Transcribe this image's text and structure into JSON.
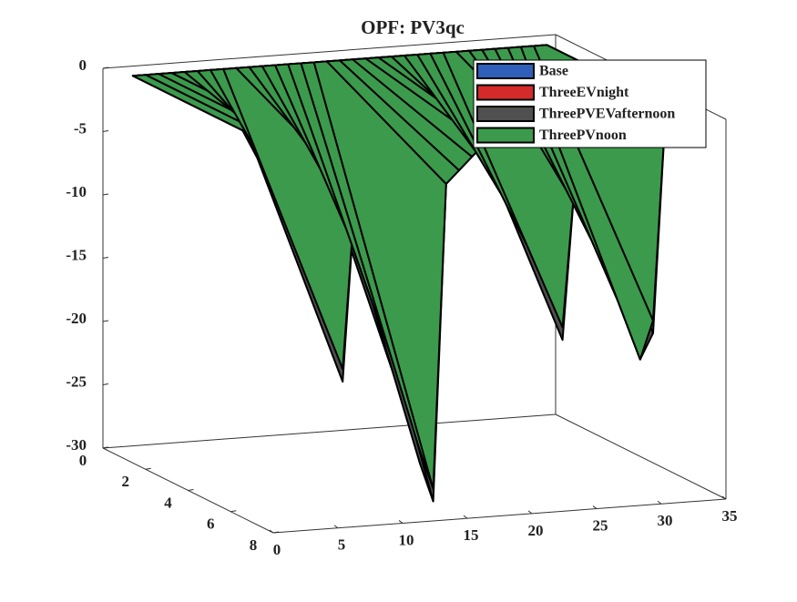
{
  "chart_data": {
    "type": "surface3d",
    "title": "OPF: PV3qc",
    "x": [
      1,
      2,
      3,
      4,
      5,
      6,
      7,
      8,
      9,
      10,
      11,
      12,
      13,
      14,
      15,
      16,
      17,
      18,
      19,
      20,
      21,
      22,
      23,
      24,
      25,
      26,
      27,
      28,
      29,
      30,
      31,
      32,
      33
    ],
    "series": [
      {
        "name": "Base",
        "color": "#2f5fb8",
        "values": [
          0,
          0,
          0,
          0,
          0,
          0,
          0,
          0,
          0,
          0,
          0,
          0,
          0,
          0,
          0,
          0,
          0,
          0,
          0,
          0,
          0,
          0,
          0,
          0,
          0,
          0,
          0,
          0,
          0,
          0,
          0,
          0,
          0
        ]
      },
      {
        "name": "ThreeEVnight",
        "color": "#d42a2a",
        "values": [
          0,
          0,
          0,
          0,
          -1,
          -1,
          -1,
          -1,
          0,
          -1,
          -1,
          -1,
          -1,
          -1,
          -1,
          0,
          0,
          0,
          0,
          0,
          -1,
          -1,
          -1,
          -1,
          -1,
          0,
          -1,
          -1,
          -1,
          -1,
          -1,
          -1,
          0
        ]
      },
      {
        "name": "ThreePVEVafternoon",
        "color": "#505050",
        "values": [
          0,
          0,
          0,
          0,
          -3,
          -6,
          -13,
          -20,
          -5,
          -8,
          -12,
          -18,
          -23,
          -27,
          -30,
          -5,
          -4,
          -3,
          -2,
          -2,
          -4,
          -8,
          -11,
          -14,
          -18,
          -5,
          -8,
          -11,
          -14,
          -17,
          -20,
          -18,
          0
        ]
      },
      {
        "name": "ThreePVnoon",
        "color": "#3c9a4c",
        "values": [
          0,
          0,
          0,
          0,
          -3,
          -6,
          -12,
          -19,
          -5,
          -8,
          -12,
          -17,
          -22,
          -26,
          -29,
          -5,
          -4,
          -3,
          -2,
          -2,
          -4,
          -8,
          -11,
          -14,
          -17,
          -5,
          -8,
          -11,
          -14,
          -17,
          -20,
          -17,
          0
        ]
      }
    ],
    "xlim": [
      0,
      35
    ],
    "xticks": [
      0,
      5,
      10,
      15,
      20,
      25,
      30,
      35
    ],
    "ylim": [
      0,
      8
    ],
    "yticks": [
      0,
      2,
      4,
      6,
      8
    ],
    "zlim": [
      -30,
      0
    ],
    "zticks": [
      -30,
      -25,
      -20,
      -15,
      -10,
      -5,
      0
    ],
    "legend": "upper right"
  }
}
